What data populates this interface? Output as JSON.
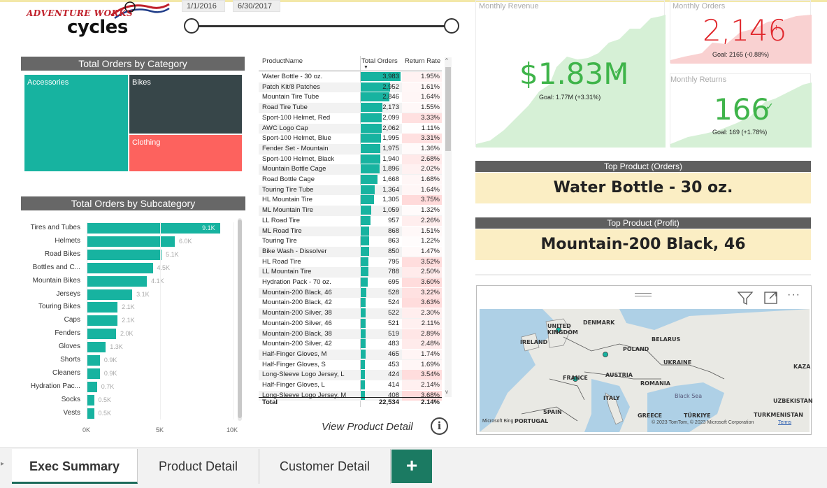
{
  "logo": {
    "line1": "ADVENTURE WORKS",
    "line2": "cycles"
  },
  "date_slicer": {
    "start": "1/1/2016",
    "end": "6/30/2017"
  },
  "category_chart": {
    "title": "Total Orders by Category",
    "items": [
      {
        "label": "Accessories",
        "color": "#17b3a0"
      },
      {
        "label": "Bikes",
        "color": "#374649"
      },
      {
        "label": "Clothing",
        "color": "#fd625e"
      }
    ]
  },
  "subcategory_chart": {
    "title": "Total Orders by Subcategory",
    "axis_ticks": [
      "0K",
      "5K",
      "10K"
    ]
  },
  "chart_data": {
    "type": "bar",
    "orientation": "horizontal",
    "title": "Total Orders by Subcategory",
    "categories": [
      "Tires and Tubes",
      "Helmets",
      "Road Bikes",
      "Bottles and C...",
      "Mountain Bikes",
      "Jerseys",
      "Touring Bikes",
      "Caps",
      "Fenders",
      "Gloves",
      "Shorts",
      "Cleaners",
      "Hydration Pac...",
      "Socks",
      "Vests"
    ],
    "values": [
      9100,
      6000,
      5100,
      4500,
      4100,
      3100,
      2100,
      2100,
      2000,
      1300,
      900,
      900,
      700,
      500,
      500
    ],
    "data_labels": [
      "9.1K",
      "6.0K",
      "5.1K",
      "4.5K",
      "4.1K",
      "3.1K",
      "2.1K",
      "2.1K",
      "2.0K",
      "1.3K",
      "0.9K",
      "0.9K",
      "0.7K",
      "0.5K",
      "0.5K"
    ],
    "xlim": [
      0,
      10000
    ]
  },
  "product_table": {
    "headers": [
      "ProductName",
      "Total Orders",
      "Return Rate"
    ],
    "max_orders": 3983,
    "rows": [
      {
        "name": "Water Bottle - 30 oz.",
        "orders": "3,983",
        "orders_num": 3983,
        "rate": "1.95%",
        "rate_num": 1.95
      },
      {
        "name": "Patch Kit/8 Patches",
        "orders": "2,952",
        "orders_num": 2952,
        "rate": "1.61%",
        "rate_num": 1.61
      },
      {
        "name": "Mountain Tire Tube",
        "orders": "2,846",
        "orders_num": 2846,
        "rate": "1.64%",
        "rate_num": 1.64
      },
      {
        "name": "Road Tire Tube",
        "orders": "2,173",
        "orders_num": 2173,
        "rate": "1.55%",
        "rate_num": 1.55
      },
      {
        "name": "Sport-100 Helmet, Red",
        "orders": "2,099",
        "orders_num": 2099,
        "rate": "3.33%",
        "rate_num": 3.33
      },
      {
        "name": "AWC Logo Cap",
        "orders": "2,062",
        "orders_num": 2062,
        "rate": "1.11%",
        "rate_num": 1.11
      },
      {
        "name": "Sport-100 Helmet, Blue",
        "orders": "1,995",
        "orders_num": 1995,
        "rate": "3.31%",
        "rate_num": 3.31
      },
      {
        "name": "Fender Set - Mountain",
        "orders": "1,975",
        "orders_num": 1975,
        "rate": "1.36%",
        "rate_num": 1.36
      },
      {
        "name": "Sport-100 Helmet, Black",
        "orders": "1,940",
        "orders_num": 1940,
        "rate": "2.68%",
        "rate_num": 2.68
      },
      {
        "name": "Mountain Bottle Cage",
        "orders": "1,896",
        "orders_num": 1896,
        "rate": "2.02%",
        "rate_num": 2.02
      },
      {
        "name": "Road Bottle Cage",
        "orders": "1,668",
        "orders_num": 1668,
        "rate": "1.68%",
        "rate_num": 1.68
      },
      {
        "name": "Touring Tire Tube",
        "orders": "1,364",
        "orders_num": 1364,
        "rate": "1.64%",
        "rate_num": 1.64
      },
      {
        "name": "HL Mountain Tire",
        "orders": "1,305",
        "orders_num": 1305,
        "rate": "3.75%",
        "rate_num": 3.75
      },
      {
        "name": "ML Mountain Tire",
        "orders": "1,059",
        "orders_num": 1059,
        "rate": "1.32%",
        "rate_num": 1.32
      },
      {
        "name": "LL Road Tire",
        "orders": "957",
        "orders_num": 957,
        "rate": "2.26%",
        "rate_num": 2.26
      },
      {
        "name": "ML Road Tire",
        "orders": "868",
        "orders_num": 868,
        "rate": "1.51%",
        "rate_num": 1.51
      },
      {
        "name": "Touring Tire",
        "orders": "863",
        "orders_num": 863,
        "rate": "1.22%",
        "rate_num": 1.22
      },
      {
        "name": "Bike Wash - Dissolver",
        "orders": "850",
        "orders_num": 850,
        "rate": "1.47%",
        "rate_num": 1.47
      },
      {
        "name": "HL Road Tire",
        "orders": "795",
        "orders_num": 795,
        "rate": "3.52%",
        "rate_num": 3.52
      },
      {
        "name": "LL Mountain Tire",
        "orders": "788",
        "orders_num": 788,
        "rate": "2.50%",
        "rate_num": 2.5
      },
      {
        "name": "Hydration Pack - 70 oz.",
        "orders": "695",
        "orders_num": 695,
        "rate": "3.60%",
        "rate_num": 3.6
      },
      {
        "name": "Mountain-200 Black, 46",
        "orders": "528",
        "orders_num": 528,
        "rate": "3.22%",
        "rate_num": 3.22
      },
      {
        "name": "Mountain-200 Black, 42",
        "orders": "524",
        "orders_num": 524,
        "rate": "3.63%",
        "rate_num": 3.63
      },
      {
        "name": "Mountain-200 Silver, 38",
        "orders": "522",
        "orders_num": 522,
        "rate": "2.30%",
        "rate_num": 2.3
      },
      {
        "name": "Mountain-200 Silver, 46",
        "orders": "521",
        "orders_num": 521,
        "rate": "2.11%",
        "rate_num": 2.11
      },
      {
        "name": "Mountain-200 Black, 38",
        "orders": "519",
        "orders_num": 519,
        "rate": "2.89%",
        "rate_num": 2.89
      },
      {
        "name": "Mountain-200 Silver, 42",
        "orders": "483",
        "orders_num": 483,
        "rate": "2.48%",
        "rate_num": 2.48
      },
      {
        "name": "Half-Finger Gloves, M",
        "orders": "465",
        "orders_num": 465,
        "rate": "1.74%",
        "rate_num": 1.74
      },
      {
        "name": "Half-Finger Gloves, S",
        "orders": "453",
        "orders_num": 453,
        "rate": "1.69%",
        "rate_num": 1.69
      },
      {
        "name": "Long-Sleeve Logo Jersey, L",
        "orders": "424",
        "orders_num": 424,
        "rate": "3.54%",
        "rate_num": 3.54
      },
      {
        "name": "Half-Finger Gloves, L",
        "orders": "414",
        "orders_num": 414,
        "rate": "2.14%",
        "rate_num": 2.14
      },
      {
        "name": "Long-Sleeve Logo Jersey, M",
        "orders": "408",
        "orders_num": 408,
        "rate": "3.68%",
        "rate_num": 3.68
      }
    ],
    "total": {
      "label": "Total",
      "orders": "22,534",
      "rate": "2.14%"
    }
  },
  "view_product_detail": {
    "label": "View Product Detail",
    "icon": "info-icon"
  },
  "kpis": {
    "revenue": {
      "title": "Monthly Revenue",
      "value": "$1.83M",
      "goal": "Goal: 1.77M (+3.31%)",
      "status": "good",
      "color": "#3fb44a"
    },
    "orders": {
      "title": "Monthly Orders",
      "value": "2,146",
      "goal": "Goal: 2165 (-0.88%)",
      "status": "bad",
      "color": "#e0262b"
    },
    "returns": {
      "title": "Monthly Returns",
      "value": "166",
      "goal": "Goal: 169 (+1.78%)",
      "status": "good",
      "color": "#3fb44a"
    }
  },
  "top_product_orders": {
    "title": "Top Product (Orders)",
    "value": "Water Bottle - 30 oz."
  },
  "top_product_profit": {
    "title": "Top Product (Profit)",
    "value": "Mountain-200 Black, 46"
  },
  "map": {
    "icons": [
      "filter-icon",
      "focus-mode-icon",
      "more-options-icon"
    ],
    "labels": [
      "UNITED KINGDOM",
      "DENMARK",
      "IRELAND",
      "BELARUS",
      "POLAND",
      "UKRAINE",
      "KAZA",
      "FRANCE",
      "AUSTRIA",
      "ROMANIA",
      "ITALY",
      "Black Sea",
      "UZBEKISTAN",
      "SPAIN",
      "PORTUGAL",
      "GREECE",
      "TÜRKIYE",
      "TURKMENISTAN"
    ],
    "copyright": "© 2023 TomTom, © 2023 Microsoft Corporation",
    "terms": "Terms",
    "brand": "Microsoft Bing"
  },
  "tabs": [
    {
      "label": "Exec Summary",
      "active": true
    },
    {
      "label": "Product Detail",
      "active": false
    },
    {
      "label": "Customer Detail",
      "active": false
    }
  ],
  "add_tab": "+"
}
